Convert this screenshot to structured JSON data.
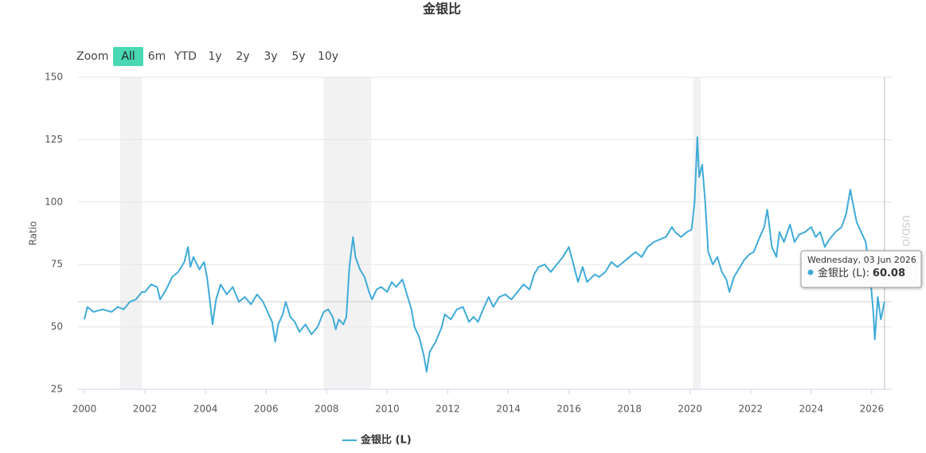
{
  "chart_data": {
    "type": "line",
    "title": "金银比",
    "y_label": "Ratio",
    "y2_label": "USD/O",
    "range_selector": {
      "label": "Zoom",
      "buttons": [
        "All",
        "6m",
        "YTD",
        "1y",
        "2y",
        "3y",
        "5y",
        "10y"
      ],
      "selected": 0
    },
    "x": [
      2000.0,
      2000.1,
      2000.3,
      2000.6,
      2000.9,
      2001.1,
      2001.3,
      2001.5,
      2001.7,
      2001.9,
      2002.0,
      2002.2,
      2002.4,
      2002.5,
      2002.7,
      2002.9,
      2003.1,
      2003.3,
      2003.42,
      2003.5,
      2003.6,
      2003.8,
      2003.95,
      2004.05,
      2004.15,
      2004.23,
      2004.35,
      2004.5,
      2004.7,
      2004.9,
      2005.1,
      2005.3,
      2005.5,
      2005.7,
      2005.9,
      2006.05,
      2006.2,
      2006.3,
      2006.4,
      2006.55,
      2006.65,
      2006.8,
      2006.95,
      2007.1,
      2007.3,
      2007.5,
      2007.7,
      2007.9,
      2008.05,
      2008.2,
      2008.3,
      2008.4,
      2008.55,
      2008.65,
      2008.75,
      2008.87,
      2008.95,
      2009.1,
      2009.25,
      2009.4,
      2009.5,
      2009.65,
      2009.8,
      2010.0,
      2010.15,
      2010.3,
      2010.5,
      2010.65,
      2010.8,
      2010.9,
      2011.05,
      2011.2,
      2011.3,
      2011.4,
      2011.6,
      2011.8,
      2011.9,
      2012.1,
      2012.3,
      2012.5,
      2012.7,
      2012.85,
      2013.0,
      2013.2,
      2013.35,
      2013.5,
      2013.7,
      2013.9,
      2014.1,
      2014.3,
      2014.5,
      2014.7,
      2014.85,
      2015.0,
      2015.2,
      2015.4,
      2015.6,
      2015.8,
      2016.0,
      2016.15,
      2016.3,
      2016.45,
      2016.6,
      2016.85,
      2017.0,
      2017.2,
      2017.4,
      2017.6,
      2017.8,
      2018.0,
      2018.2,
      2018.4,
      2018.6,
      2018.8,
      2019.0,
      2019.2,
      2019.4,
      2019.5,
      2019.7,
      2019.9,
      2020.05,
      2020.15,
      2020.24,
      2020.3,
      2020.4,
      2020.5,
      2020.6,
      2020.75,
      2020.9,
      2021.05,
      2021.2,
      2021.3,
      2021.45,
      2021.6,
      2021.8,
      2021.95,
      2022.1,
      2022.3,
      2022.45,
      2022.55,
      2022.7,
      2022.85,
      2022.95,
      2023.1,
      2023.3,
      2023.45,
      2023.6,
      2023.8,
      2024.0,
      2024.15,
      2024.3,
      2024.45,
      2024.6,
      2024.8,
      2025.0,
      2025.15,
      2025.29,
      2025.4,
      2025.5,
      2025.65,
      2025.8,
      2025.95,
      2026.05,
      2026.1,
      2026.2,
      2026.3,
      2026.42
    ],
    "series": [
      {
        "name": "金银比 (L)",
        "color": "#3fabd8",
        "values": [
          53,
          58,
          56,
          57,
          56,
          58,
          57,
          60,
          61,
          64,
          64,
          67,
          66,
          61,
          65,
          70,
          72,
          76,
          82,
          74,
          78,
          73,
          76,
          70,
          60,
          51,
          61,
          67,
          63,
          66,
          60,
          62,
          59,
          63,
          60,
          56,
          52,
          44,
          51,
          55,
          60,
          54,
          52,
          48,
          51,
          47,
          50,
          56,
          57,
          54,
          49,
          53,
          51,
          54,
          74,
          86,
          78,
          73,
          70,
          64,
          61,
          65,
          66,
          64,
          68,
          66,
          69,
          63,
          57,
          50,
          46,
          39,
          32,
          40,
          44,
          50,
          55,
          53,
          57,
          58,
          52,
          54,
          52,
          58,
          62,
          58,
          62,
          63,
          61,
          64,
          67,
          65,
          71,
          74,
          75,
          72,
          75,
          78,
          82,
          75,
          68,
          74,
          68,
          71,
          70,
          72,
          76,
          74,
          76,
          78,
          80,
          78,
          82,
          84,
          85,
          86,
          90,
          88,
          86,
          88,
          89,
          100,
          126,
          110,
          115,
          100,
          80,
          75,
          78,
          72,
          69,
          64,
          70,
          73,
          77,
          79,
          80,
          86,
          90,
          97,
          82,
          78,
          88,
          84,
          91,
          84,
          87,
          88,
          90,
          86,
          88,
          82,
          85,
          88,
          90,
          95,
          105,
          98,
          92,
          88,
          84,
          70,
          56,
          45,
          62,
          53,
          60.08
        ]
      }
    ],
    "xlim": [
      1999.79,
      2026.66
    ],
    "xticks": [
      2000,
      2002,
      2004,
      2006,
      2008,
      2010,
      2012,
      2014,
      2016,
      2018,
      2020,
      2022,
      2024,
      2026
    ],
    "ylim": [
      25,
      150
    ],
    "yticks": [
      25,
      50,
      75,
      100,
      125,
      150
    ],
    "grid": true,
    "plot_bands": [
      [
        2001.18,
        2001.9
      ],
      [
        2007.9,
        2009.47
      ],
      [
        2020.1,
        2020.35
      ]
    ],
    "tooltip": {
      "date": "Wednesday, 03 Jun 2026",
      "label": "金银比 (L):",
      "x": 2026.42,
      "value": 60.08
    }
  }
}
